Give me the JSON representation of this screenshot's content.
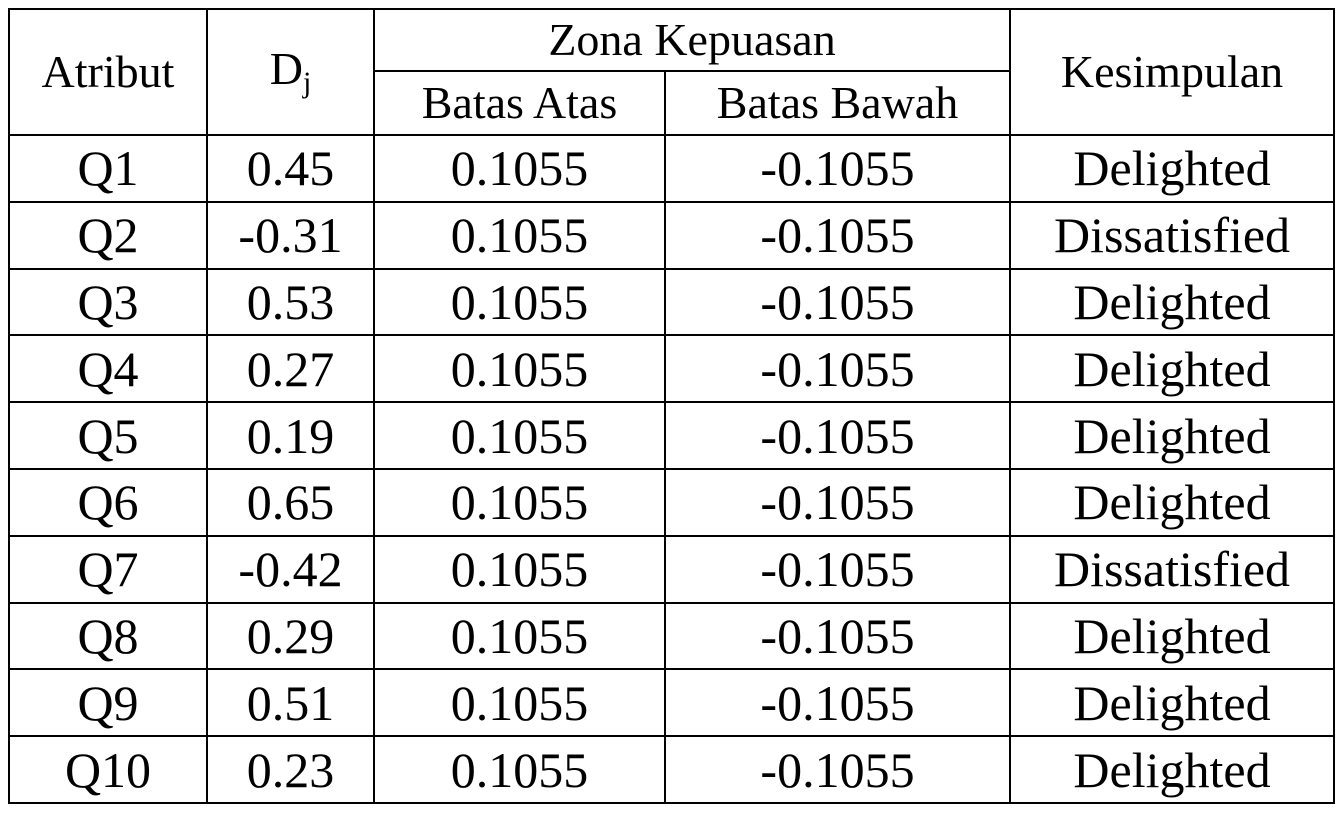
{
  "header": {
    "atribut": "Atribut",
    "dj": {
      "base": "D",
      "sub": "j"
    },
    "zona": "Zona Kepuasan",
    "batas_atas": "Batas Atas",
    "batas_bawah": "Batas Bawah",
    "kesimpulan": "Kesimpulan"
  },
  "table": {
    "rows": [
      [
        "Q1",
        "0.45",
        "0.1055",
        "-0.1055",
        "Delighted"
      ],
      [
        "Q2",
        "-0.31",
        "0.1055",
        "-0.1055",
        "Dissatisfied"
      ],
      [
        "Q3",
        "0.53",
        "0.1055",
        "-0.1055",
        "Delighted"
      ],
      [
        "Q4",
        "0.27",
        "0.1055",
        "-0.1055",
        "Delighted"
      ],
      [
        "Q5",
        "0.19",
        "0.1055",
        "-0.1055",
        "Delighted"
      ],
      [
        "Q6",
        "0.65",
        "0.1055",
        "-0.1055",
        "Delighted"
      ],
      [
        "Q7",
        "-0.42",
        "0.1055",
        "-0.1055",
        "Dissatisfied"
      ],
      [
        "Q8",
        "0.29",
        "0.1055",
        "-0.1055",
        "Delighted"
      ],
      [
        "Q9",
        "0.51",
        "0.1055",
        "-0.1055",
        "Delighted"
      ],
      [
        "Q10",
        "0.23",
        "0.1055",
        "-0.1055",
        "Delighted"
      ]
    ]
  }
}
